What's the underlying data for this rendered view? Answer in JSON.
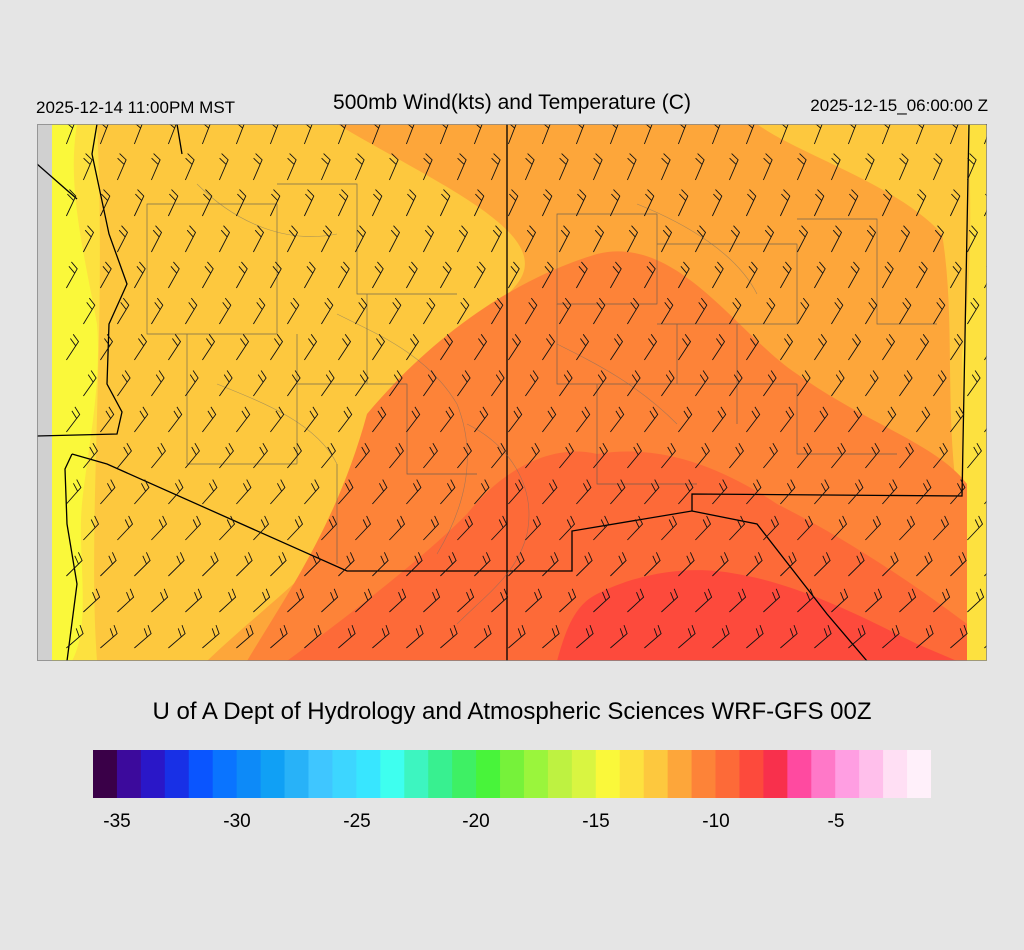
{
  "header": {
    "valid_local": "2025-12-14 11:00PM MST",
    "title": "500mb Wind(kts) and Temperature (C)",
    "valid_utc": "2025-12-15_06:00:00 Z"
  },
  "footer": {
    "credit": "U of A Dept of Hydrology and Atmospheric Sciences WRF-GFS 00Z"
  },
  "colorbar": {
    "colors": [
      "#3a0048",
      "#3c0a9c",
      "#2a17c8",
      "#1830e6",
      "#0a55ff",
      "#0a74ff",
      "#0d8af8",
      "#10a0f5",
      "#28b2f8",
      "#3fc6ff",
      "#3dd6ff",
      "#38e6ff",
      "#3effef",
      "#3df5c0",
      "#38f090",
      "#3ef064",
      "#48f43a",
      "#76f23a",
      "#9af53c",
      "#bef241",
      "#d9f541",
      "#faf83a",
      "#fde13f",
      "#fdc83e",
      "#fda63a",
      "#fd8338",
      "#fd6a38",
      "#fd4a3c",
      "#f8304c",
      "#ff4aa0",
      "#ff78c8",
      "#ff9ee2",
      "#ffbfeb",
      "#ffdff4",
      "#fff0fa"
    ],
    "tick_labels": [
      "-35",
      "-30",
      "-25",
      "-20",
      "-15",
      "-10",
      "-5"
    ]
  },
  "legend": {
    "field": "Temperature (C)",
    "wind": "Wind barbs (kts)"
  }
}
